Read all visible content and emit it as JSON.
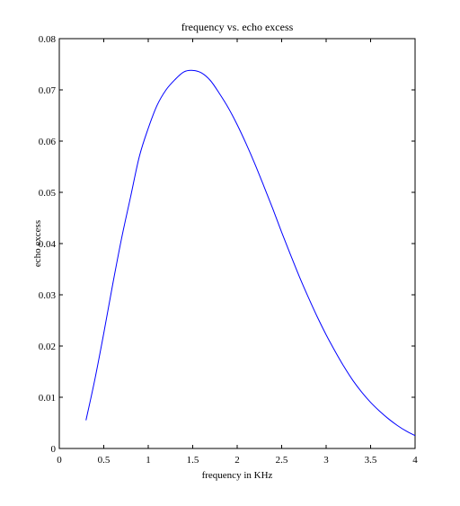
{
  "chart_data": {
    "type": "line",
    "title": "frequency vs. echo excess",
    "xlabel": "frequency in KHz",
    "ylabel": "echo excess",
    "xlim": [
      0,
      4
    ],
    "ylim": [
      0,
      0.08
    ],
    "xticks": [
      0,
      0.5,
      1,
      1.5,
      2,
      2.5,
      3,
      3.5,
      4
    ],
    "xtick_labels": [
      "0",
      "0.5",
      "1",
      "1.5",
      "2",
      "2.5",
      "3",
      "3.5",
      "4"
    ],
    "yticks": [
      0,
      0.01,
      0.02,
      0.03,
      0.04,
      0.05,
      0.06,
      0.07,
      0.08
    ],
    "ytick_labels": [
      "0",
      "0.01",
      "0.02",
      "0.03",
      "0.04",
      "0.05",
      "0.06",
      "0.07",
      "0.08"
    ],
    "grid": false,
    "line_color": "#0000ff",
    "series": [
      {
        "x": [
          0.3,
          0.4,
          0.5,
          0.6,
          0.7,
          0.8,
          0.9,
          1.0,
          1.1,
          1.2,
          1.3,
          1.4,
          1.5,
          1.6,
          1.7,
          1.8,
          1.9,
          2.0,
          2.1,
          2.2,
          2.3,
          2.4,
          2.5,
          2.6,
          2.7,
          2.8,
          2.9,
          3.0,
          3.1,
          3.2,
          3.3,
          3.4,
          3.5,
          3.6,
          3.7,
          3.8,
          3.9,
          4.0
        ],
        "values": [
          0.0055,
          0.0135,
          0.0225,
          0.032,
          0.041,
          0.049,
          0.057,
          0.0625,
          0.067,
          0.07,
          0.072,
          0.0735,
          0.0738,
          0.0733,
          0.0718,
          0.0693,
          0.0665,
          0.0632,
          0.0595,
          0.0555,
          0.0512,
          0.0468,
          0.0422,
          0.0378,
          0.0335,
          0.0295,
          0.0257,
          0.0222,
          0.019,
          0.016,
          0.0133,
          0.011,
          0.009,
          0.0073,
          0.0058,
          0.0045,
          0.0034,
          0.0025
        ]
      }
    ]
  }
}
